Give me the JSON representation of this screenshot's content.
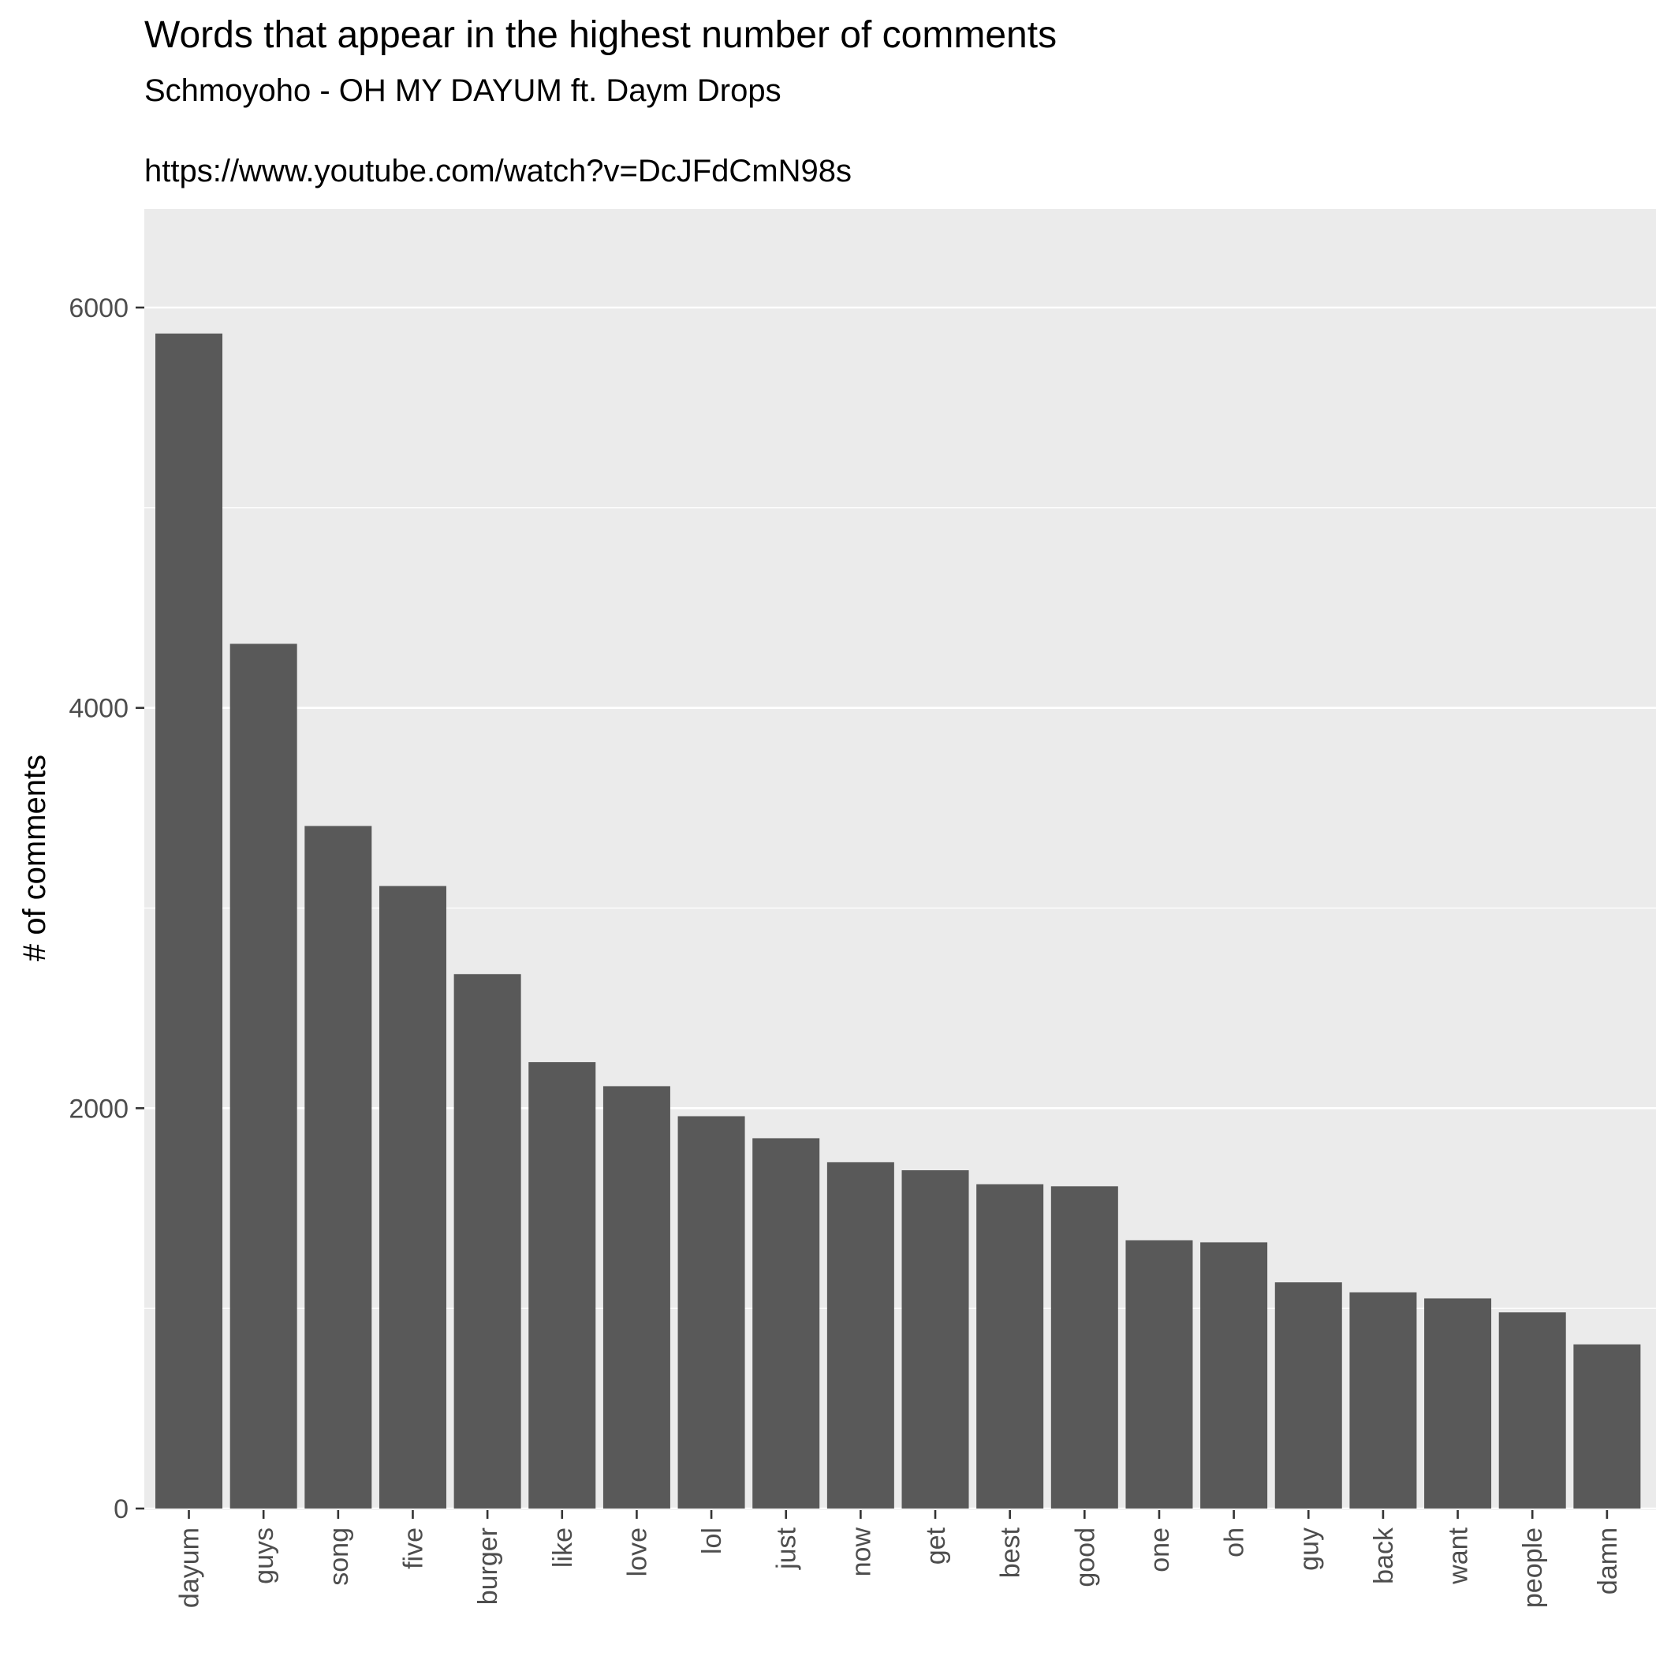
{
  "chart_data": {
    "type": "bar",
    "title": "Words that appear in the highest number of comments",
    "subtitle": "Schmoyoho - OH MY DAYUM ft. Daym Drops",
    "caption_line": "https://www.youtube.com/watch?v=DcJFdCmN98s",
    "xlabel": "",
    "ylabel": "# of comments",
    "categories": [
      "dayum",
      "guys",
      "song",
      "five",
      "burger",
      "like",
      "love",
      "lol",
      "just",
      "now",
      "get",
      "best",
      "good",
      "one",
      "oh",
      "guy",
      "back",
      "want",
      "people",
      "damn"
    ],
    "values": [
      5870,
      4320,
      3410,
      3110,
      2670,
      2230,
      2110,
      1960,
      1850,
      1730,
      1690,
      1620,
      1610,
      1340,
      1330,
      1130,
      1080,
      1050,
      980,
      820
    ],
    "ylim": [
      0,
      6500
    ],
    "yticks": [
      0,
      2000,
      4000,
      6000
    ],
    "y_tick_labels": [
      "0",
      "2000",
      "4000",
      "6000"
    ],
    "grid": true,
    "legend": "none",
    "colors": {
      "bar": "#595959",
      "panel_background": "#ebebeb",
      "grid_line": "#ffffff",
      "tick_text": "#4d4d4d",
      "tick_mark": "#333333",
      "title_text": "#000000"
    }
  }
}
